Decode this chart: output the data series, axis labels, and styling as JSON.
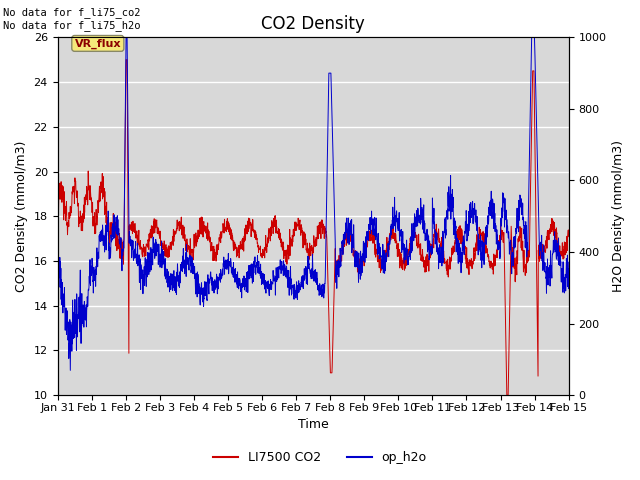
{
  "title": "CO2 Density",
  "xlabel": "Time",
  "ylabel_left": "CO2 Density (mmol/m3)",
  "ylabel_right": "H2O Density (mmol/m3)",
  "ylim_left": [
    10,
    26
  ],
  "ylim_right": [
    0,
    1000
  ],
  "yticks_left": [
    10,
    12,
    14,
    16,
    18,
    20,
    22,
    24,
    26
  ],
  "yticks_right": [
    0,
    200,
    400,
    600,
    800,
    1000
  ],
  "annotation_text": "No data for f_li75_co2\nNo data for f_li75_h2o",
  "vr_flux_label": "VR_flux",
  "legend_entries": [
    "LI7500 CO2",
    "op_h2o"
  ],
  "line_color_red": "#cc0000",
  "line_color_blue": "#0000cc",
  "bg_color": "#d8d8d8",
  "title_fontsize": 12,
  "label_fontsize": 9,
  "tick_fontsize": 8
}
